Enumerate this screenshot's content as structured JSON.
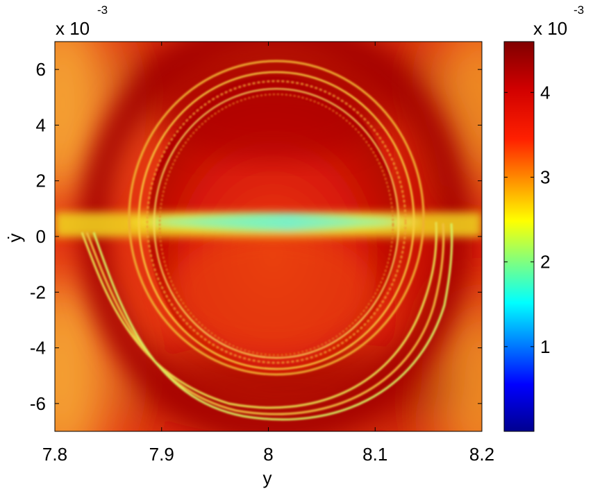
{
  "chart_data": {
    "type": "heatmap",
    "title": "",
    "xlabel": "y",
    "ylabel": "ẏ",
    "x_range": [
      7.8,
      8.2
    ],
    "y_range": [
      -7,
      7
    ],
    "x_ticks": [
      "7.8",
      "7.9",
      "8",
      "8.1",
      "8.2"
    ],
    "y_ticks": [
      "6",
      "4",
      "2",
      "0",
      "-2",
      "-4",
      "-6"
    ],
    "y_tick_values": [
      6,
      4,
      2,
      0,
      -2,
      -4,
      -6
    ],
    "y_scale_multiplier": "x 10",
    "y_scale_exponent": "-3",
    "colorbar": {
      "range": [
        0,
        4.6
      ],
      "ticks": [
        "4",
        "3",
        "2",
        "1"
      ],
      "tick_values": [
        4,
        3,
        2,
        1
      ],
      "scale_multiplier": "x 10",
      "scale_exponent": "-3",
      "colormap": "jet"
    },
    "features": {
      "background_level": 3.9,
      "horizontal_band": {
        "y_center": 0.5,
        "level": 2.9,
        "min_level": 2.0,
        "min_at_x": 8.0
      },
      "closed_orbit_rings": {
        "center": [
          8.0,
          0.7
        ],
        "radius_x": [
          0.087,
          0.115
        ],
        "radius_y": [
          5.0,
          5.7
        ],
        "count": 4
      },
      "lower_arcs": {
        "x_from": 7.82,
        "x_to": 8.12,
        "y_min": -6.2,
        "count": 3
      }
    }
  }
}
